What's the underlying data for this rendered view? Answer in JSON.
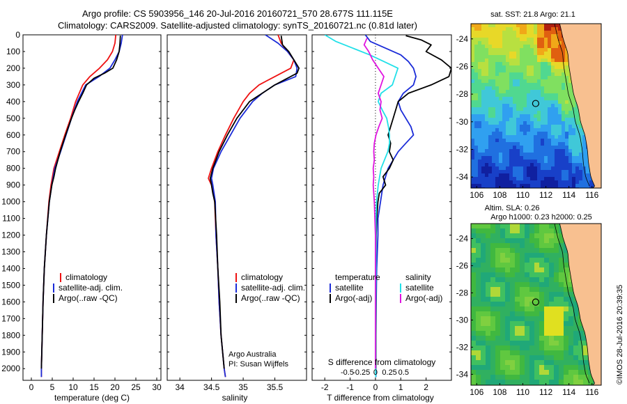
{
  "header": {
    "line1": "Argo profile: CS 5903956_146 20-Jul-2016 20160721_570 28.677S 111.115E",
    "line2": "Climatology: CARS2009. Satellite-adjusted climatology: synTS_20160721.nc (0.81d later)"
  },
  "colors": {
    "climatology": "#ee1111",
    "satellite": "#1a2bd8",
    "argo": "#000000",
    "argo_s": "#e014e0",
    "satellite_s": "#20e0e8"
  },
  "chart_data": [
    {
      "type": "line",
      "name": "temperature-panel",
      "xlabel": "temperature (deg C)",
      "ylabel": "",
      "xlim": [
        -2,
        31
      ],
      "ylim": [
        2070,
        0
      ],
      "xticks": [
        0,
        5,
        10,
        15,
        20,
        25,
        30
      ],
      "yticks": [
        0,
        100,
        200,
        300,
        400,
        500,
        600,
        700,
        800,
        900,
        1000,
        1100,
        1200,
        1300,
        1400,
        1500,
        1600,
        1700,
        1800,
        1900,
        2000
      ],
      "legend": [
        "climatology",
        "satellite-adj. clim.",
        "Argo(..raw -QC)"
      ],
      "series": [
        {
          "name": "climatology",
          "depth": [
            0,
            50,
            100,
            150,
            200,
            250,
            300,
            400,
            500,
            600,
            700,
            800,
            900,
            1000,
            1200,
            1400,
            1600,
            1800,
            2000,
            2050
          ],
          "values": [
            20.2,
            20.0,
            19.4,
            18.2,
            16.3,
            14.0,
            12.3,
            10.6,
            9.4,
            8.0,
            6.7,
            5.4,
            4.7,
            4.2,
            3.6,
            3.1,
            2.8,
            2.6,
            2.4,
            2.4
          ]
        },
        {
          "name": "satellite-adj. clim.",
          "depth": [
            0,
            50,
            100,
            150,
            200,
            250,
            300,
            400,
            500,
            600,
            700,
            800,
            900,
            1000,
            1200,
            1400,
            1600,
            1800,
            2000,
            2050
          ],
          "values": [
            21.8,
            21.5,
            21.0,
            20.0,
            18.8,
            16.2,
            13.0,
            11.0,
            9.6,
            8.3,
            7.0,
            5.6,
            4.9,
            4.3,
            3.6,
            3.1,
            2.8,
            2.6,
            2.4,
            2.4
          ]
        },
        {
          "name": "Argo(..raw -QC)",
          "depth": [
            5,
            50,
            100,
            150,
            200,
            230,
            260,
            300,
            350,
            400,
            450,
            500,
            600,
            700,
            800,
            850,
            900,
            950,
            1000,
            1200,
            1400,
            1600,
            1800,
            2000
          ],
          "values": [
            21.3,
            21.2,
            21.0,
            20.4,
            19.5,
            17.5,
            15.0,
            13.2,
            12.3,
            11.3,
            10.4,
            9.6,
            8.2,
            6.9,
            5.8,
            5.4,
            4.9,
            4.6,
            4.3,
            3.6,
            3.1,
            2.8,
            2.6,
            2.4
          ]
        }
      ]
    },
    {
      "type": "line",
      "name": "salinity-panel",
      "xlabel": "salinity",
      "xlim": [
        33.8,
        36.0
      ],
      "ylim": [
        2070,
        0
      ],
      "xticks": [
        34,
        34.5,
        35,
        35.5
      ],
      "legend": [
        "climatology",
        "satellite-adj. clim.",
        "Argo(..raw -QC)"
      ],
      "annotation": [
        "Argo Australia",
        "PI: Susan Wijffels"
      ],
      "series": [
        {
          "name": "climatology",
          "depth": [
            0,
            50,
            100,
            150,
            200,
            250,
            300,
            350,
            400,
            500,
            600,
            700,
            800,
            860,
            900,
            1000,
            1200,
            1400,
            1600,
            1800,
            2000,
            2050
          ],
          "values": [
            35.55,
            35.6,
            35.7,
            35.8,
            35.75,
            35.5,
            35.25,
            35.1,
            35.0,
            34.85,
            34.72,
            34.6,
            34.5,
            34.45,
            34.5,
            34.55,
            34.57,
            34.6,
            34.62,
            34.65,
            34.7,
            34.72
          ]
        },
        {
          "name": "satellite-adj. clim.",
          "depth": [
            0,
            50,
            100,
            150,
            200,
            250,
            300,
            350,
            400,
            500,
            600,
            700,
            800,
            860,
            900,
            1000,
            1200,
            1400,
            1600,
            1800,
            2000,
            2050
          ],
          "values": [
            35.35,
            35.55,
            35.7,
            35.8,
            35.85,
            35.83,
            35.5,
            35.3,
            35.15,
            34.95,
            34.8,
            34.65,
            34.53,
            34.5,
            34.52,
            34.56,
            34.57,
            34.6,
            34.62,
            34.65,
            34.7,
            34.72
          ]
        },
        {
          "name": "Argo(..raw -QC)",
          "depth": [
            5,
            60,
            100,
            150,
            200,
            230,
            260,
            300,
            350,
            400,
            500,
            600,
            700,
            800,
            860,
            900,
            950,
            1000,
            1200,
            1400,
            1600,
            1800,
            2000
          ],
          "values": [
            35.6,
            35.62,
            35.72,
            35.8,
            35.88,
            35.85,
            35.7,
            35.5,
            35.3,
            35.1,
            34.9,
            34.75,
            34.62,
            34.52,
            34.48,
            34.5,
            34.52,
            34.55,
            34.58,
            34.6,
            34.63,
            34.65,
            34.7
          ]
        }
      ]
    },
    {
      "type": "line",
      "name": "difference-panel",
      "xlabel": "T difference from climatology",
      "top_label": "S difference from climatology",
      "xlim": [
        -2.5,
        3.0
      ],
      "ylim": [
        2070,
        0
      ],
      "xticks": [
        -2,
        -1,
        0,
        1,
        2
      ],
      "top_ticks": [
        "-0.5",
        "-0.25",
        "0",
        "0.25",
        "0.5"
      ],
      "top_tick_values": [
        -0.5,
        -0.25,
        0,
        0.25,
        0.5
      ],
      "legend_titles": [
        "temperature",
        "salinity"
      ],
      "legend": [
        "satellite",
        "Argo(-adj)",
        "satellite",
        "Argo(-adj)"
      ],
      "series": [
        {
          "name": "T satellite",
          "depth": [
            0,
            40,
            80,
            120,
            160,
            200,
            250,
            300,
            350,
            400,
            450,
            500,
            550,
            600,
            650,
            700,
            800,
            900,
            1000,
            1100,
            1200,
            1400,
            1600,
            1800,
            2000,
            2050
          ],
          "values": [
            -0.4,
            -0.2,
            0.4,
            1.0,
            1.3,
            1.5,
            1.6,
            1.5,
            1.1,
            0.9,
            1.0,
            1.2,
            1.4,
            1.5,
            1.2,
            0.9,
            0.5,
            0.3,
            0.2,
            0.1,
            0.1,
            0.05,
            0.03,
            0.02,
            0.02,
            0.02
          ]
        },
        {
          "name": "T Argo(-adj)",
          "depth": [
            5,
            30,
            60,
            100,
            150,
            200,
            250,
            300,
            350,
            400,
            450,
            500,
            550,
            600,
            650,
            700,
            750,
            800,
            850,
            900,
            950,
            1000,
            1100,
            1200,
            1400,
            1600,
            1800,
            2000
          ],
          "values": [
            1.2,
            1.8,
            2.2,
            2.0,
            2.6,
            3.0,
            2.9,
            2.2,
            1.3,
            0.9,
            0.8,
            0.7,
            0.6,
            0.5,
            0.6,
            0.55,
            0.7,
            0.55,
            0.3,
            0.4,
            0.15,
            0.1,
            0.05,
            0.03,
            0.02,
            0.02,
            0.02,
            0.02
          ]
        },
        {
          "name": "S satellite",
          "depth": [
            0,
            40,
            80,
            120,
            160,
            200,
            250,
            300,
            350,
            400,
            450,
            500,
            550,
            600,
            650,
            700,
            800,
            900,
            1000,
            1100,
            1200,
            1400,
            1600,
            1800,
            2000,
            2050
          ],
          "values": [
            -0.9,
            -0.7,
            -0.4,
            -0.1,
            0.15,
            0.4,
            0.35,
            0.3,
            0.1,
            0.05,
            0.12,
            0.2,
            0.23,
            0.25,
            0.25,
            0.22,
            0.1,
            0.05,
            0.02,
            0.01,
            0.01,
            0.01,
            0.005,
            0.005,
            0.005,
            0.005
          ]
        },
        {
          "name": "S Argo(-adj)",
          "depth": [
            20,
            60,
            100,
            150,
            200,
            250,
            300,
            350,
            400,
            450,
            500,
            550,
            600,
            650,
            700,
            750,
            800,
            850,
            900,
            950,
            1000,
            1100,
            1200,
            1400,
            1600,
            1800,
            2000
          ],
          "values": [
            -0.15,
            -0.2,
            -0.12,
            -0.05,
            0.05,
            0.15,
            0.1,
            0.05,
            0.1,
            0.08,
            0.12,
            0.06,
            0.01,
            -0.02,
            -0.03,
            -0.02,
            -0.04,
            -0.03,
            -0.04,
            -0.03,
            -0.02,
            -0.01,
            0.0,
            0.0,
            0.0,
            0.0,
            0.0
          ]
        }
      ]
    },
    {
      "type": "heatmap",
      "name": "sst-map",
      "title": "sat. SST: 21.8  Argo: 21.1",
      "xticks": [
        106,
        108,
        110,
        112,
        114,
        116
      ],
      "yticks": [
        -24,
        -26,
        -28,
        -30,
        -32,
        -34
      ],
      "xlim": [
        105.5,
        116.8
      ],
      "ylim": [
        -34.8,
        -22.9
      ],
      "argo_position": {
        "lon": 111.115,
        "lat": -28.677
      }
    },
    {
      "type": "heatmap",
      "name": "sla-map",
      "title": "Altim. SLA: 0.26",
      "subtitle": "Argo h1000: 0.23  h2000: 0.25",
      "xticks": [
        106,
        108,
        110,
        112,
        114,
        116
      ],
      "yticks": [
        -24,
        -26,
        -28,
        -30,
        -32,
        -34
      ],
      "xlim": [
        105.5,
        116.8
      ],
      "ylim": [
        -34.8,
        -22.9
      ],
      "argo_position": {
        "lon": 111.115,
        "lat": -28.677
      }
    }
  ],
  "credit": "©IMOS 28-Jul-2016 20:39:35"
}
